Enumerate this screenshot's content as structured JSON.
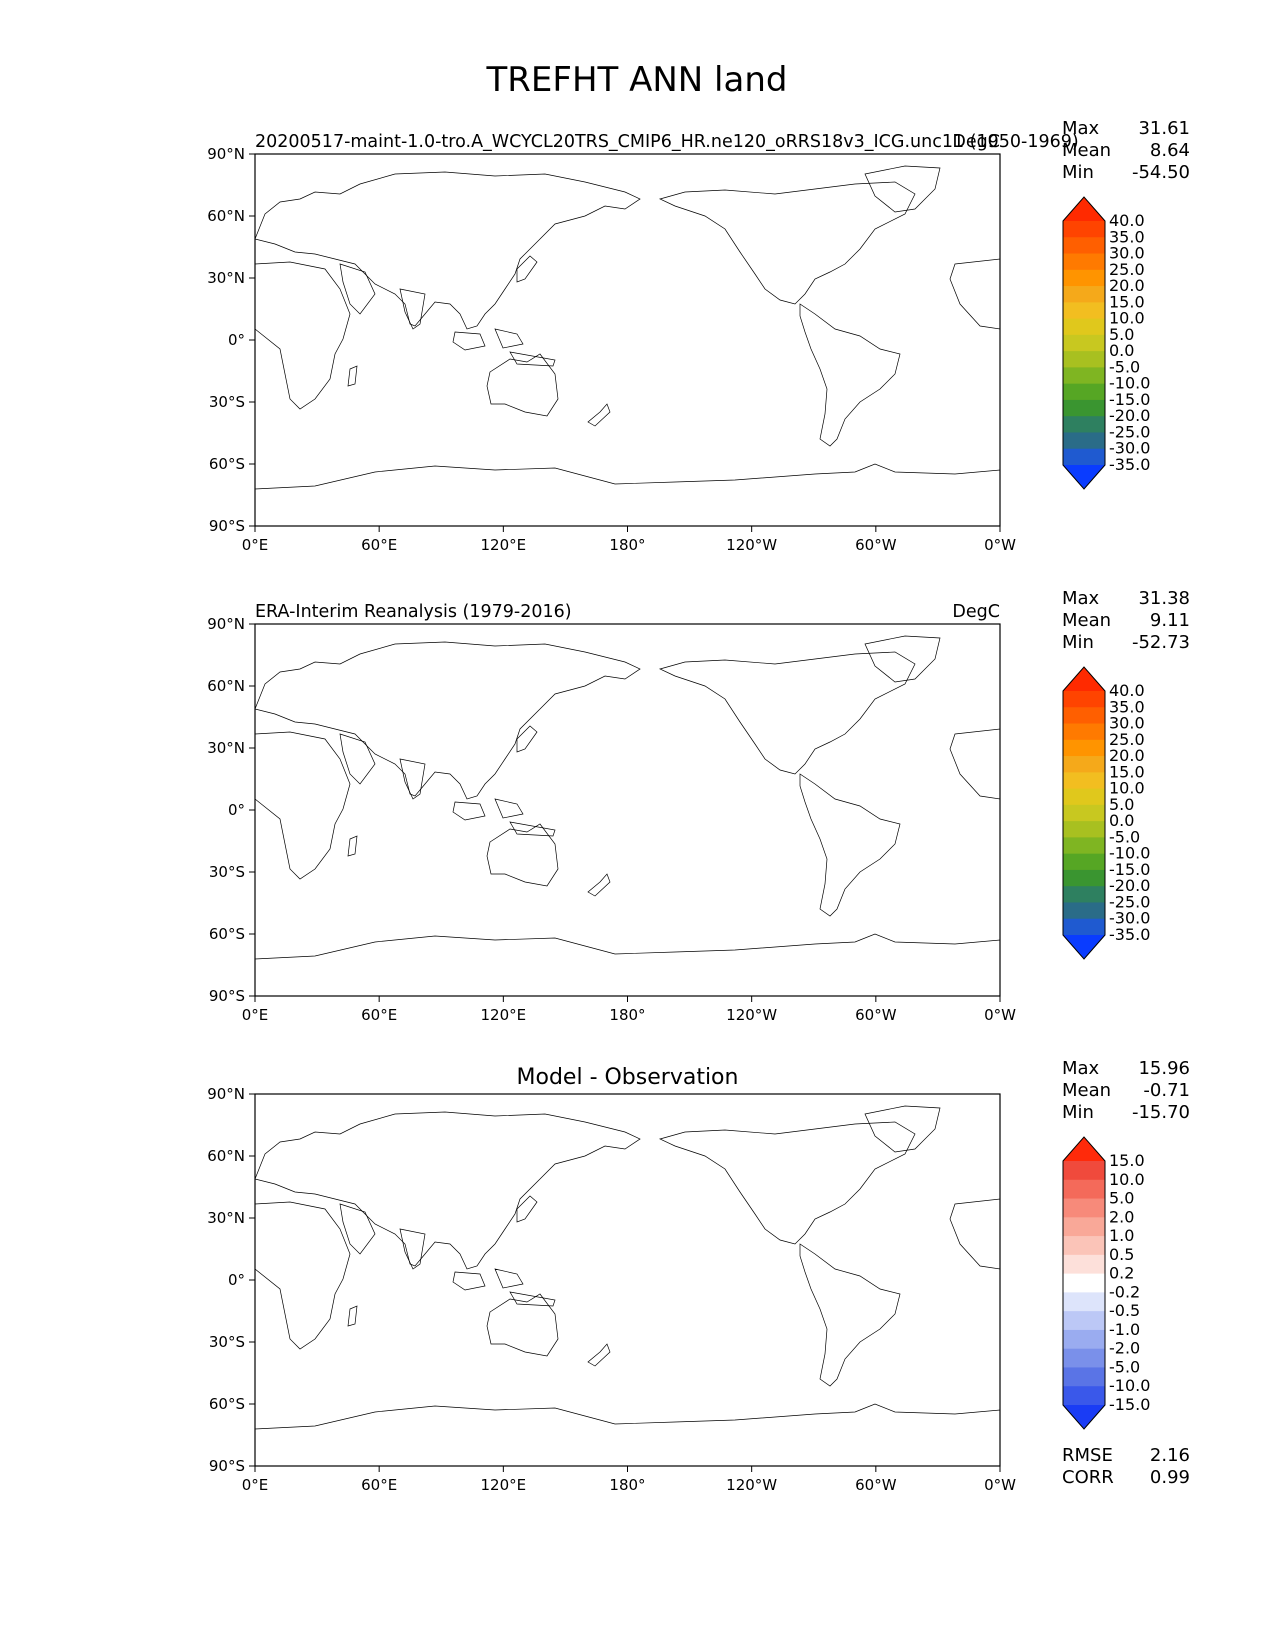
{
  "figure_title": "TREFHT ANN land",
  "chart_data": [
    {
      "type": "heatmap",
      "name": "model",
      "title_left": "20200517-maint-1.0-tro.A_WCYCL20TRS_CMIP6_HR.ne120_oRRS18v3_ICG.unc11 (1950-1969)",
      "title_right": "DegC",
      "title_center": "",
      "stats": [
        {
          "label": "Max",
          "value": "31.61"
        },
        {
          "label": "Mean",
          "value": "8.64"
        },
        {
          "label": "Min",
          "value": "-54.50"
        }
      ],
      "colorbar": {
        "levels": [
          "40.0",
          "35.0",
          "30.0",
          "25.0",
          "20.0",
          "15.0",
          "10.0",
          "5.0",
          "0.0",
          "-5.0",
          "-10.0",
          "-15.0",
          "-20.0",
          "-25.0",
          "-30.0",
          "-35.0"
        ],
        "colors": [
          "#ff2a00",
          "#ff4400",
          "#ff5f00",
          "#ff7a00",
          "#ff9400",
          "#f5a91a",
          "#f2be20",
          "#e0c81c",
          "#c8c820",
          "#a8c020",
          "#7fb522",
          "#56a624",
          "#3a9530",
          "#2e8060",
          "#2a6c88",
          "#1f5ad0",
          "#0a3cff"
        ]
      },
      "x_ticks": [
        "0°E",
        "60°E",
        "120°E",
        "180°",
        "120°W",
        "60°W",
        "0°W"
      ],
      "y_ticks": [
        "90°N",
        "60°N",
        "30°N",
        "0°",
        "30°S",
        "60°S",
        "90°S"
      ]
    },
    {
      "type": "heatmap",
      "name": "observation",
      "title_left": "ERA-Interim Reanalysis (1979-2016)",
      "title_right": "DegC",
      "title_center": "",
      "stats": [
        {
          "label": "Max",
          "value": "31.38"
        },
        {
          "label": "Mean",
          "value": "9.11"
        },
        {
          "label": "Min",
          "value": "-52.73"
        }
      ],
      "colorbar": {
        "levels": [
          "40.0",
          "35.0",
          "30.0",
          "25.0",
          "20.0",
          "15.0",
          "10.0",
          "5.0",
          "0.0",
          "-5.0",
          "-10.0",
          "-15.0",
          "-20.0",
          "-25.0",
          "-30.0",
          "-35.0"
        ],
        "colors": [
          "#ff2a00",
          "#ff4400",
          "#ff5f00",
          "#ff7a00",
          "#ff9400",
          "#f5a91a",
          "#f2be20",
          "#e0c81c",
          "#c8c820",
          "#a8c020",
          "#7fb522",
          "#56a624",
          "#3a9530",
          "#2e8060",
          "#2a6c88",
          "#1f5ad0",
          "#0a3cff"
        ]
      },
      "x_ticks": [
        "0°E",
        "60°E",
        "120°E",
        "180°",
        "120°W",
        "60°W",
        "0°W"
      ],
      "y_ticks": [
        "90°N",
        "60°N",
        "30°N",
        "0°",
        "30°S",
        "60°S",
        "90°S"
      ]
    },
    {
      "type": "heatmap",
      "name": "difference",
      "title_left": "",
      "title_right": "",
      "title_center": "Model - Observation",
      "stats": [
        {
          "label": "Max",
          "value": "15.96"
        },
        {
          "label": "Mean",
          "value": "-0.71"
        },
        {
          "label": "Min",
          "value": "-15.70"
        }
      ],
      "colorbar": {
        "levels": [
          "15.0",
          "10.0",
          "5.0",
          "2.0",
          "1.0",
          "0.5",
          "0.2",
          "-0.2",
          "-0.5",
          "-1.0",
          "-2.0",
          "-5.0",
          "-10.0",
          "-15.0"
        ],
        "colors": [
          "#ff2a0a",
          "#f04a3c",
          "#f46a5a",
          "#f78a7a",
          "#f9a898",
          "#fbc4b8",
          "#fde0da",
          "#ffffff",
          "#dde4fb",
          "#bcc8f6",
          "#9aacf0",
          "#7a90ea",
          "#5a74e6",
          "#3a58ea",
          "#1a3cf5"
        ]
      },
      "metrics": [
        {
          "label": "RMSE",
          "value": "2.16"
        },
        {
          "label": "CORR",
          "value": "0.99"
        }
      ],
      "x_ticks": [
        "0°E",
        "60°E",
        "120°E",
        "180°",
        "120°W",
        "60°W",
        "0°W"
      ],
      "y_ticks": [
        "90°N",
        "60°N",
        "30°N",
        "0°",
        "30°S",
        "60°S",
        "90°S"
      ]
    }
  ]
}
